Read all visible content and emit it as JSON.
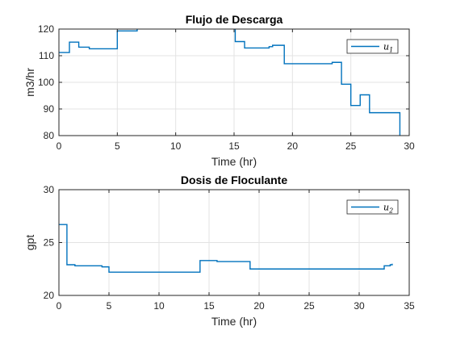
{
  "colors": {
    "series": "#0072BD"
  },
  "chart_data": [
    {
      "type": "line",
      "step": true,
      "title": "Flujo de Descarga",
      "xlabel": "Time (hr)",
      "ylabel": "m3/hr",
      "xlim": [
        0,
        30
      ],
      "ylim": [
        80,
        120
      ],
      "xticks": [
        0,
        5,
        10,
        15,
        20,
        25,
        30
      ],
      "yticks": [
        80,
        90,
        100,
        110,
        120
      ],
      "grid": true,
      "legend_position": "top-right",
      "series": [
        {
          "name": "u1",
          "name_base": "u",
          "name_sub": "1",
          "x": [
            0,
            0.9,
            1.7,
            2.6,
            5.0,
            6.7,
            15.0,
            15.1,
            15.9,
            17.4,
            18.0,
            18.3,
            18.7,
            19.3,
            23.4,
            24.2,
            25.0,
            25.8,
            26.6,
            29.2,
            29.2
          ],
          "y": [
            111.2,
            115.1,
            113.2,
            112.6,
            119.3,
            122.0,
            122.0,
            115.3,
            112.9,
            112.9,
            113.4,
            113.9,
            113.9,
            107.0,
            107.5,
            99.3,
            91.3,
            95.3,
            88.6,
            88.6,
            80.0
          ]
        }
      ]
    },
    {
      "type": "line",
      "step": true,
      "title": "Dosis de Floculante",
      "xlabel": "Time (hr)",
      "ylabel": "gpt",
      "xlim": [
        0,
        35
      ],
      "ylim": [
        20,
        30
      ],
      "xticks": [
        0,
        5,
        10,
        15,
        20,
        25,
        30,
        35
      ],
      "yticks": [
        20,
        25,
        30
      ],
      "grid": true,
      "legend_position": "top-right",
      "series": [
        {
          "name": "u2",
          "name_base": "u",
          "name_sub": "2",
          "x": [
            0,
            0.8,
            1.6,
            4.3,
            5.0,
            14.1,
            15.8,
            17.0,
            19.1,
            32.5,
            33.1,
            33.3
          ],
          "y": [
            26.7,
            22.9,
            22.8,
            22.7,
            22.2,
            23.3,
            23.2,
            23.2,
            22.5,
            22.8,
            22.9,
            23.0
          ]
        }
      ]
    }
  ]
}
